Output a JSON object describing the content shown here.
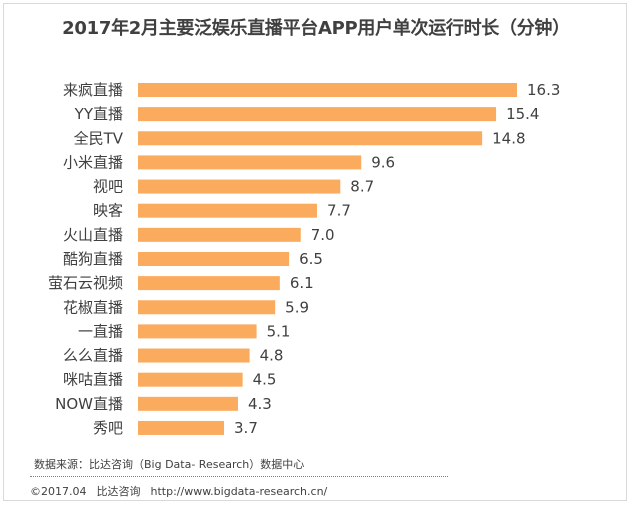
{
  "colors": {
    "bar": "#fbab5e",
    "text": "#404040",
    "border": "#d9d9d9"
  },
  "chart_data": {
    "type": "bar",
    "orientation": "horizontal",
    "title": "2017年2月主要泛娱乐直播平台APP用户单次运行时长（分钟）",
    "categories": [
      "来疯直播",
      "YY直播",
      "全民TV",
      "小米直播",
      "视吧",
      "映客",
      "火山直播",
      "酷狗直播",
      "萤石云视频",
      "花椒直播",
      "一直播",
      "么么直播",
      "咪咕直播",
      "NOW直播",
      "秀吧"
    ],
    "values": [
      16.3,
      15.4,
      14.8,
      9.6,
      8.7,
      7.7,
      7.0,
      6.5,
      6.1,
      5.9,
      5.1,
      4.8,
      4.5,
      4.3,
      3.7
    ],
    "value_labels": [
      "16.3",
      "15.4",
      "14.8",
      "9.6",
      "8.7",
      "7.7",
      "7.0",
      "6.5",
      "6.1",
      "5.9",
      "5.1",
      "4.8",
      "4.5",
      "4.3",
      "3.7"
    ],
    "xlim": [
      0,
      16.3
    ],
    "grid": false,
    "legend": "none"
  },
  "footer": {
    "source": "数据来源：比达咨询（Big Data- Research）数据中心",
    "date": "©2017.04",
    "company": "比达咨询",
    "url": "http://www.bigdata-research.cn/"
  }
}
